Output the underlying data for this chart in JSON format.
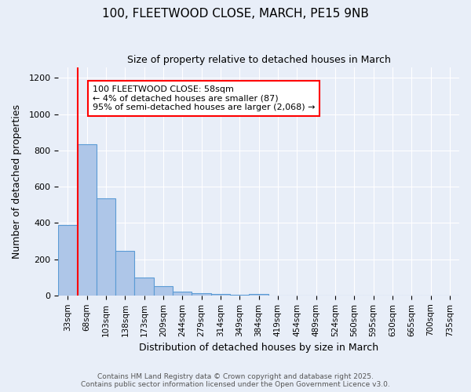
{
  "title": "100, FLEETWOOD CLOSE, MARCH, PE15 9NB",
  "subtitle": "Size of property relative to detached houses in March",
  "xlabel": "Distribution of detached houses by size in March",
  "ylabel": "Number of detached properties",
  "categories": [
    "33sqm",
    "68sqm",
    "103sqm",
    "138sqm",
    "173sqm",
    "209sqm",
    "244sqm",
    "279sqm",
    "314sqm",
    "349sqm",
    "384sqm",
    "419sqm",
    "454sqm",
    "489sqm",
    "524sqm",
    "560sqm",
    "595sqm",
    "630sqm",
    "665sqm",
    "700sqm",
    "735sqm"
  ],
  "values": [
    390,
    835,
    535,
    245,
    100,
    52,
    22,
    13,
    10,
    5,
    8,
    0,
    0,
    0,
    0,
    0,
    0,
    0,
    0,
    0,
    0
  ],
  "bar_color": "#aec6e8",
  "bar_edge_color": "#5b9bd5",
  "background_color": "#e8eef8",
  "vline_x": 1,
  "vline_color": "red",
  "annotation_text": "100 FLEETWOOD CLOSE: 58sqm\n← 4% of detached houses are smaller (87)\n95% of semi-detached houses are larger (2,068) →",
  "annotation_box_color": "white",
  "annotation_box_edge_color": "red",
  "ylim": [
    0,
    1260
  ],
  "yticks": [
    0,
    200,
    400,
    600,
    800,
    1000,
    1200
  ],
  "footer_line1": "Contains HM Land Registry data © Crown copyright and database right 2025.",
  "footer_line2": "Contains public sector information licensed under the Open Government Licence v3.0."
}
